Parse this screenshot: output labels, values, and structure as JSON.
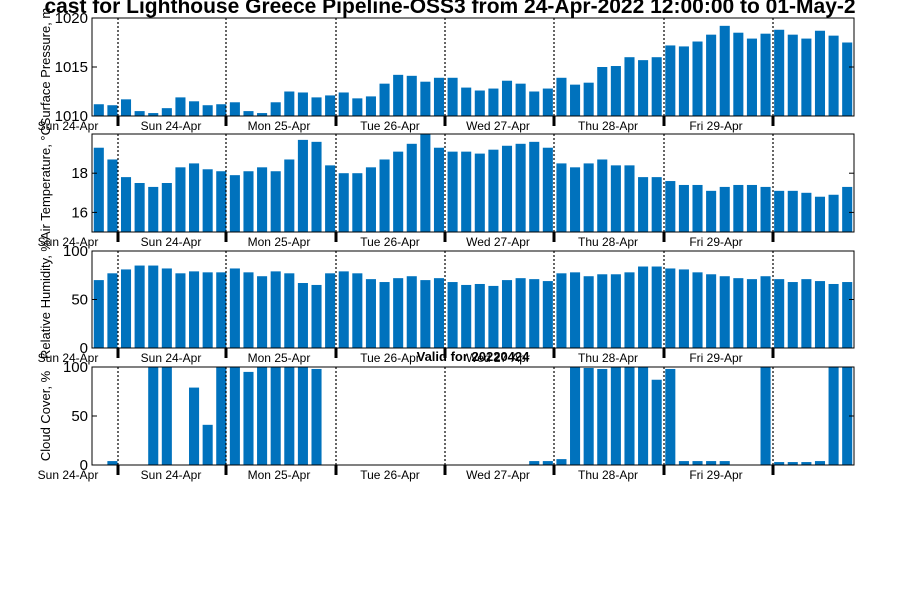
{
  "title": "cast for Lighthouse Greece Pipeline-OSS3 from 24-Apr-2022 12:00:00 to 01-May-2",
  "x_tick_labels": [
    "Sun 24-Apr",
    "Sun 24-Apr",
    "Mon 25-Apr",
    "Tue 26-Apr",
    "Wed 27-Apr",
    "Thu 28-Apr",
    "Fri 29-Apr"
  ],
  "colors": {
    "bar": "#0072bd",
    "axis": "#000000",
    "background": "#ffffff"
  },
  "chart_data": [
    {
      "type": "bar",
      "ylabel": "Surface Pressure, m",
      "ylim": [
        1010,
        1020
      ],
      "yticks": [
        1010,
        1015,
        1020
      ],
      "grid": false,
      "values": [
        1011.2,
        1011.1,
        1011.7,
        1010.5,
        1010.3,
        1010.8,
        1011.9,
        1011.5,
        1011.1,
        1011.2,
        1011.4,
        1010.5,
        1010.3,
        1011.4,
        1012.5,
        1012.4,
        1011.9,
        1012.1,
        1012.4,
        1011.8,
        1012.0,
        1013.3,
        1014.2,
        1014.1,
        1013.5,
        1013.9,
        1013.9,
        1012.9,
        1012.6,
        1012.8,
        1013.6,
        1013.3,
        1012.5,
        1012.8,
        1013.9,
        1013.2,
        1013.4,
        1015.0,
        1015.1,
        1016.0,
        1015.7,
        1016.0,
        1017.2,
        1017.1,
        1017.6,
        1018.3,
        1019.2,
        1018.5,
        1017.9,
        1018.4,
        1018.8,
        1018.3,
        1017.9,
        1018.7,
        1018.2,
        1017.5
      ]
    },
    {
      "type": "bar",
      "ylabel": "Air Temperature, °C",
      "ylim": [
        15,
        20
      ],
      "yticks": [
        16,
        18
      ],
      "grid": false,
      "values": [
        19.3,
        18.7,
        17.8,
        17.5,
        17.3,
        17.5,
        18.3,
        18.5,
        18.2,
        18.1,
        17.9,
        18.1,
        18.3,
        18.1,
        18.7,
        19.7,
        19.6,
        18.4,
        18.0,
        18.0,
        18.3,
        18.7,
        19.1,
        19.5,
        20.0,
        19.3,
        19.1,
        19.1,
        19.0,
        19.2,
        19.4,
        19.5,
        19.6,
        19.3,
        18.5,
        18.3,
        18.5,
        18.7,
        18.4,
        18.4,
        17.8,
        17.8,
        17.6,
        17.4,
        17.4,
        17.1,
        17.3,
        17.4,
        17.4,
        17.3,
        17.1,
        17.1,
        17.0,
        16.8,
        16.9,
        17.3
      ]
    },
    {
      "type": "bar",
      "ylabel": "Relative Humidity, %",
      "ylim": [
        0,
        100
      ],
      "yticks": [
        0,
        50,
        100
      ],
      "grid": false,
      "values": [
        70,
        77,
        81,
        85,
        85,
        82,
        77,
        79,
        78,
        78,
        82,
        78,
        74,
        79,
        77,
        67,
        65,
        77,
        79,
        77,
        71,
        68,
        72,
        74,
        70,
        72,
        68,
        65,
        66,
        64,
        70,
        72,
        71,
        69,
        77,
        78,
        74,
        76,
        76,
        78,
        84,
        84,
        82,
        81,
        78,
        76,
        74,
        72,
        71,
        74,
        71,
        68,
        71,
        69,
        66,
        68
      ]
    },
    {
      "type": "bar",
      "subtitle": "Valid for 20220424",
      "ylabel": "Cloud Cover, %",
      "ylim": [
        0,
        100
      ],
      "yticks": [
        0,
        50,
        100
      ],
      "grid": false,
      "values": [
        0,
        4,
        0,
        0,
        100,
        100,
        0,
        79,
        41,
        100,
        100,
        95,
        100,
        100,
        100,
        100,
        98,
        0,
        0,
        0,
        0,
        0,
        0,
        0,
        0,
        0,
        0,
        0,
        0,
        0,
        0,
        0,
        4,
        4,
        6,
        100,
        99,
        98,
        100,
        100,
        100,
        87,
        98,
        4,
        4,
        4,
        4,
        0,
        0,
        100,
        3,
        3,
        3,
        4,
        100,
        100
      ]
    }
  ]
}
